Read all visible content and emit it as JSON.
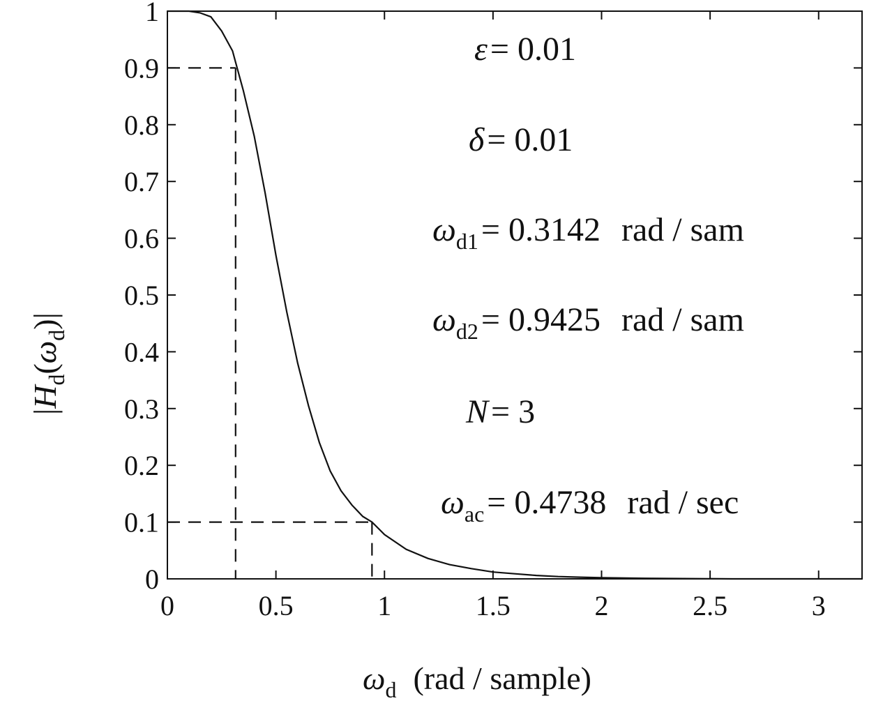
{
  "chart_data": {
    "type": "line",
    "title": "",
    "xlim": [
      0,
      3.2
    ],
    "ylim": [
      0,
      1
    ],
    "x_ticks": [
      0,
      0.5,
      1,
      1.5,
      2,
      2.5,
      3
    ],
    "x_tick_labels": [
      "0",
      "0.5",
      "1",
      "1.5",
      "2",
      "2.5",
      "3"
    ],
    "y_ticks": [
      0,
      0.1,
      0.2,
      0.3,
      0.4,
      0.5,
      0.6,
      0.7,
      0.8,
      0.9,
      1
    ],
    "y_tick_labels": [
      "0",
      "0.1",
      "0.2",
      "0.3",
      "0.4",
      "0.5",
      "0.6",
      "0.7",
      "0.8",
      "0.9",
      "1"
    ],
    "xlabel": {
      "symbol": "ω",
      "subscript": "d",
      "units": "(rad / sample)"
    },
    "ylabel": {
      "prefix": "|",
      "symbol": "H",
      "subscript": "d",
      "arg_open": "(",
      "arg_symbol": "ω",
      "arg_subscript": "d",
      "arg_close": ")",
      "suffix": "|"
    },
    "grid": false,
    "series": [
      {
        "x": [
          0,
          0.1,
          0.15,
          0.2,
          0.25,
          0.3,
          0.3142,
          0.35,
          0.4,
          0.45,
          0.5,
          0.55,
          0.6,
          0.65,
          0.7,
          0.75,
          0.8,
          0.85,
          0.9,
          0.9425,
          1.0,
          1.1,
          1.2,
          1.3,
          1.4,
          1.5,
          1.6,
          1.7,
          1.8,
          1.9,
          2.0,
          2.2,
          2.6,
          3.2
        ],
        "y": [
          1.0,
          1.0,
          0.997,
          0.99,
          0.965,
          0.93,
          0.91,
          0.86,
          0.78,
          0.68,
          0.57,
          0.47,
          0.38,
          0.305,
          0.24,
          0.19,
          0.155,
          0.13,
          0.11,
          0.1,
          0.078,
          0.052,
          0.036,
          0.025,
          0.018,
          0.012,
          0.009,
          0.006,
          0.004,
          0.003,
          0.002,
          0.001,
          0.0,
          0.0
        ]
      }
    ],
    "reference_lines": [
      {
        "x": 0.3142,
        "y": 0.9
      },
      {
        "x": 0.9425,
        "y": 0.1
      }
    ],
    "annotations": [
      {
        "symbol": "ε",
        "subscript": "",
        "text": "= 0.01",
        "units": ""
      },
      {
        "symbol": "δ",
        "subscript": "",
        "text": "= 0.01",
        "units": ""
      },
      {
        "symbol": "ω",
        "subscript": "d1",
        "text": "= 0.3142",
        "units": "rad / sam"
      },
      {
        "symbol": "ω",
        "subscript": "d2",
        "text": "= 0.9425",
        "units": "rad / sam"
      },
      {
        "symbol": "N",
        "subscript": "",
        "text": "= 3",
        "units": ""
      },
      {
        "symbol": "ω",
        "subscript": "ac",
        "text": "= 0.4738",
        "units": "rad / sec"
      }
    ]
  }
}
